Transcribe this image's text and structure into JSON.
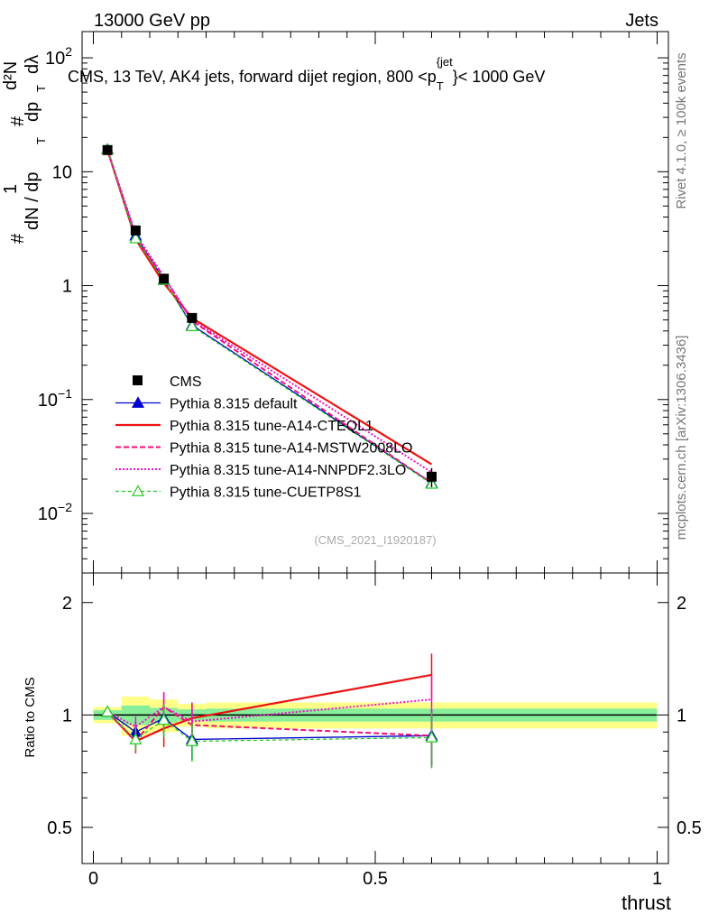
{
  "header": {
    "energy_label": "13000 GeV pp",
    "process_label": "Jets"
  },
  "side_labels": {
    "rivet": "Rivet 4.1.0, ≥ 100k events",
    "mcplots": "mcplots.cern.ch [arXiv:1306.3436]"
  },
  "main_plot": {
    "title_prefix": "CMS, 13 TeV, AK4 jets, forward dijet region, 800 <p",
    "title_sub": "T",
    "title_sup": "{jet",
    "title_suffix": "}< 1000 GeV",
    "ylabel_main": "1 / dN / dp_T · d²N / dp_T dλ",
    "ylabel_parts": [
      "#",
      "1",
      "dN / dp",
      "T",
      "#",
      "d²N",
      "dp",
      "T",
      "dλ"
    ],
    "watermark": "(CMS_2021_I1920187)",
    "ytick_labels": [
      {
        "base": "10",
        "exp": "−2",
        "value": 0.01
      },
      {
        "base": "10",
        "exp": "−1",
        "value": 0.1
      },
      {
        "base": "1",
        "exp": "",
        "value": 1
      },
      {
        "base": "10",
        "exp": "",
        "value": 10
      },
      {
        "base": "10",
        "exp": "2",
        "value": 100
      }
    ]
  },
  "ratio_plot": {
    "ylabel": "Ratio to CMS",
    "ytick_labels": [
      "0.5",
      "1",
      "2"
    ],
    "xtick_labels": [
      "0",
      "0.5",
      "1"
    ],
    "xlabel": "thrust"
  },
  "legend": {
    "entries": [
      {
        "label": "CMS",
        "color": "#000000",
        "style": "square"
      },
      {
        "label": "Pythia 8.315 default",
        "color": "#0000cc",
        "style": "line-triangle"
      },
      {
        "label": "Pythia 8.315 tune-A14-CTEQL1",
        "color": "#ee1111",
        "style": "solid"
      },
      {
        "label": "Pythia 8.315 tune-A14-MSTW2008LO",
        "color": "#ee1177",
        "style": "dashed"
      },
      {
        "label": "Pythia 8.315 tune-A14-NNPDF2.3LO",
        "color": "#ee11cc",
        "style": "dotted"
      },
      {
        "label": "Pythia 8.315 tune-CUETP8S1",
        "color": "#22cc22",
        "style": "dashed-open-triangle"
      }
    ]
  },
  "chart_data": [
    {
      "type": "line",
      "title": "CMS, 13 TeV, AK4 jets, forward dijet region, 800 <p_T^{jet}< 1000 GeV",
      "xlabel": "thrust",
      "ylabel": "1/dN/dp_T d^2N/dp_T dλ",
      "yscale": "log",
      "xlim": [
        -0.02,
        1.02
      ],
      "ylim": [
        0.003,
        170
      ],
      "x": [
        0.025,
        0.075,
        0.125,
        0.175,
        0.6
      ],
      "series": [
        {
          "name": "CMS",
          "values": [
            15.5,
            3.05,
            1.15,
            0.52,
            0.021
          ],
          "errors": [
            0.4,
            0.15,
            0.06,
            0.03,
            0.004
          ]
        },
        {
          "name": "Pythia 8.315 default",
          "values": [
            15.7,
            2.75,
            1.12,
            0.45,
            0.0185
          ]
        },
        {
          "name": "Pythia 8.315 tune-A14-CTEQL1",
          "values": [
            15.6,
            2.55,
            1.05,
            0.52,
            0.027
          ]
        },
        {
          "name": "Pythia 8.315 tune-A14-MSTW2008LO",
          "values": [
            15.6,
            2.6,
            1.2,
            0.49,
            0.0185
          ]
        },
        {
          "name": "Pythia 8.315 tune-A14-NNPDF2.3LO",
          "values": [
            15.7,
            2.85,
            1.2,
            0.5,
            0.023
          ]
        },
        {
          "name": "Pythia 8.315 tune-CUETP8S1",
          "values": [
            15.7,
            2.6,
            1.12,
            0.44,
            0.0182
          ]
        }
      ]
    },
    {
      "type": "line",
      "title": "Ratio to CMS",
      "xlabel": "thrust",
      "ylabel": "Ratio to CMS",
      "yscale": "log",
      "ylim": [
        0.4,
        2.4
      ],
      "x": [
        0.025,
        0.075,
        0.125,
        0.175,
        0.6
      ],
      "bands": {
        "bin_edges": [
          0.0,
          0.05,
          0.1,
          0.15,
          0.2,
          1.0
        ],
        "stat_halfwidth": [
          0.03,
          0.06,
          0.045,
          0.035,
          0.04
        ],
        "total_halfwidth": [
          0.05,
          0.12,
          0.1,
          0.07,
          0.08
        ]
      },
      "series": [
        {
          "name": "Pythia 8.315 default",
          "values": [
            1.02,
            0.9,
            0.98,
            0.86,
            0.88
          ],
          "errors": [
            0.02,
            0.06,
            0.1,
            0.1,
            0.15
          ]
        },
        {
          "name": "Pythia 8.315 tune-A14-CTEQL1",
          "values": [
            1.02,
            0.85,
            0.92,
            0.98,
            1.28
          ],
          "errors": [
            0.02,
            0.06,
            0.1,
            0.1,
            0.18
          ]
        },
        {
          "name": "Pythia 8.315 tune-A14-MSTW2008LO",
          "values": [
            1.02,
            0.85,
            1.05,
            0.94,
            0.88
          ],
          "errors": [
            0.02,
            0.06,
            0.1,
            0.1,
            0.15
          ]
        },
        {
          "name": "Pythia 8.315 tune-A14-NNPDF2.3LO",
          "values": [
            1.02,
            0.93,
            1.05,
            0.96,
            1.1
          ],
          "errors": [
            0.02,
            0.06,
            0.1,
            0.1,
            0.18
          ]
        },
        {
          "name": "Pythia 8.315 tune-CUETP8S1",
          "values": [
            1.02,
            0.86,
            0.97,
            0.85,
            0.87
          ],
          "errors": [
            0.02,
            0.06,
            0.1,
            0.1,
            0.15
          ]
        }
      ]
    }
  ]
}
